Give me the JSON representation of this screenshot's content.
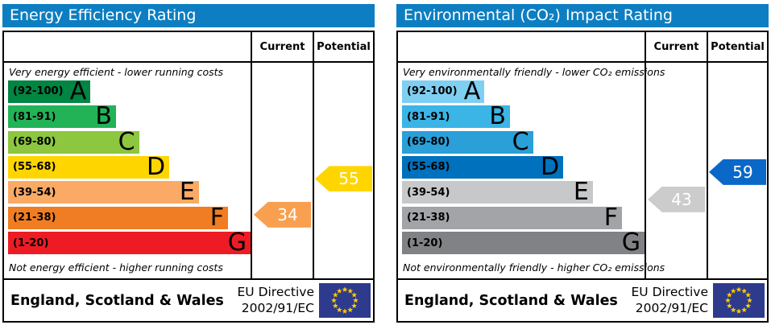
{
  "colors": {
    "panel_header_bg": "#0d7ec1",
    "panel_header_text": "#ffffff",
    "table_border": "#000000",
    "eu_flag_bg": "#2e3a8c",
    "eu_flag_stars": "#ffcc00"
  },
  "chart_data": [
    {
      "type": "bar",
      "title": "Energy Efficiency Rating",
      "columns": [
        "Current",
        "Potential"
      ],
      "top_note": "Very energy efficient - lower running costs",
      "bottom_note": "Not energy efficient - higher running costs",
      "bands": [
        {
          "letter": "A",
          "range_label": "(92-100)",
          "min": 92,
          "max": 100,
          "color": "#008542",
          "width_pct": 34
        },
        {
          "letter": "B",
          "range_label": "(81-91)",
          "min": 81,
          "max": 91,
          "color": "#22b357",
          "width_pct": 44.5
        },
        {
          "letter": "C",
          "range_label": "(69-80)",
          "min": 69,
          "max": 80,
          "color": "#8dc63f",
          "width_pct": 54
        },
        {
          "letter": "D",
          "range_label": "(55-68)",
          "min": 55,
          "max": 68,
          "color": "#ffd500",
          "width_pct": 66.5
        },
        {
          "letter": "E",
          "range_label": "(39-54)",
          "min": 39,
          "max": 54,
          "color": "#fbaa65",
          "width_pct": 78.7
        },
        {
          "letter": "F",
          "range_label": "(21-38)",
          "min": 21,
          "max": 38,
          "color": "#f07d23",
          "width_pct": 90.7
        },
        {
          "letter": "G",
          "range_label": "(1-20)",
          "min": 1,
          "max": 20,
          "color": "#ed1c24",
          "width_pct": 100
        }
      ],
      "current": {
        "value": 34,
        "band": "F",
        "color": "#f9a050"
      },
      "potential": {
        "value": 55,
        "band": "D",
        "color": "#ffd500"
      },
      "footer_region": "England, Scotland & Wales",
      "footer_directive_line1": "EU Directive",
      "footer_directive_line2": "2002/91/EC"
    },
    {
      "type": "bar",
      "title": "Environmental (CO₂) Impact Rating",
      "columns": [
        "Current",
        "Potential"
      ],
      "top_note": "Very environmentally friendly - lower CO₂ emissions",
      "bottom_note": "Not environmentally friendly - higher CO₂ emissions",
      "bands": [
        {
          "letter": "A",
          "range_label": "(92-100)",
          "min": 92,
          "max": 100,
          "color": "#7ecff2",
          "width_pct": 34
        },
        {
          "letter": "B",
          "range_label": "(81-91)",
          "min": 81,
          "max": 91,
          "color": "#3bb4e6",
          "width_pct": 44.5
        },
        {
          "letter": "C",
          "range_label": "(69-80)",
          "min": 69,
          "max": 80,
          "color": "#2a9fd8",
          "width_pct": 54
        },
        {
          "letter": "D",
          "range_label": "(55-68)",
          "min": 55,
          "max": 68,
          "color": "#0071bc",
          "width_pct": 66.5
        },
        {
          "letter": "E",
          "range_label": "(39-54)",
          "min": 39,
          "max": 54,
          "color": "#c7c8ca",
          "width_pct": 78.7
        },
        {
          "letter": "F",
          "range_label": "(21-38)",
          "min": 21,
          "max": 38,
          "color": "#a2a4a7",
          "width_pct": 90.7
        },
        {
          "letter": "G",
          "range_label": "(1-20)",
          "min": 1,
          "max": 20,
          "color": "#808285",
          "width_pct": 100
        }
      ],
      "current": {
        "value": 43,
        "band": "E",
        "color": "#cccccc"
      },
      "potential": {
        "value": 59,
        "band": "D",
        "color": "#0a68c8"
      },
      "footer_region": "England, Scotland & Wales",
      "footer_directive_line1": "EU Directive",
      "footer_directive_line2": "2002/91/EC"
    }
  ]
}
